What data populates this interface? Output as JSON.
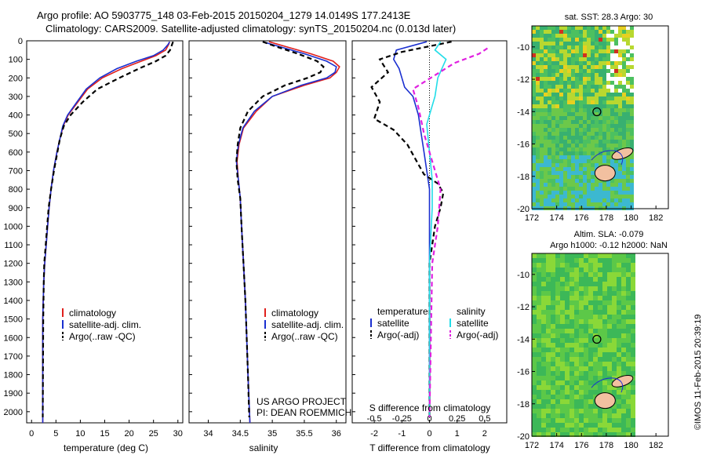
{
  "title": {
    "line1": "Argo profile: AO 5903775_148 03-Feb-2015 20150204_1279 14.0149S 177.2413E",
    "line2": "Climatology: CARS2009. Satellite-adjusted climatology: synTS_20150204.nc (0.013d later)"
  },
  "colors": {
    "climatology": "#e0201c",
    "satellite": "#1a2fd0",
    "argo": "#000000",
    "sat_salinity": "#22dde8",
    "argo_adj_salinity": "#e020e0"
  },
  "chart_data": [
    {
      "id": "temperature",
      "type": "line",
      "xlabel": "temperature (deg C)",
      "ylabel": "",
      "xlim": [
        -1,
        31
      ],
      "ylim": [
        2060,
        0
      ],
      "xticks": [
        0,
        5,
        10,
        15,
        20,
        25,
        30
      ],
      "yticks": [
        0,
        100,
        200,
        300,
        400,
        500,
        600,
        700,
        800,
        900,
        1000,
        1100,
        1200,
        1300,
        1400,
        1500,
        1600,
        1700,
        1800,
        1900,
        2000
      ],
      "legend": {
        "placement": "lower-center",
        "entries": [
          "climatology",
          "satellite-adj. clim.",
          "Argo(..raw -QC)"
        ]
      },
      "series": [
        {
          "name": "climatology",
          "style": "solid",
          "color": "#e0201c",
          "x": [
            28.3,
            28.1,
            27.5,
            25.5,
            22.5,
            18.5,
            14.5,
            11.5,
            9.5,
            7.5,
            6.5,
            5.8,
            5.2,
            4.5,
            4.0,
            3.6,
            3.3,
            3.0,
            2.7,
            2.5,
            2.4,
            2.3,
            2.3
          ],
          "y": [
            5,
            20,
            50,
            80,
            110,
            150,
            200,
            260,
            330,
            400,
            460,
            530,
            600,
            700,
            800,
            900,
            1000,
            1100,
            1200,
            1300,
            1400,
            1500,
            2060
          ]
        },
        {
          "name": "satellite-adj. clim.",
          "style": "solid",
          "color": "#1a2fd0",
          "x": [
            28.3,
            28.0,
            27.0,
            25.0,
            21.5,
            17.5,
            14.0,
            11.2,
            9.3,
            7.4,
            6.4,
            5.8,
            5.2,
            4.5,
            4.0,
            3.6,
            3.3,
            3.0,
            2.7,
            2.5,
            2.4,
            2.3,
            2.3
          ],
          "y": [
            5,
            20,
            50,
            80,
            110,
            150,
            200,
            260,
            330,
            400,
            460,
            530,
            600,
            700,
            800,
            900,
            1000,
            1100,
            1200,
            1300,
            1400,
            1500,
            2060
          ]
        },
        {
          "name": "Argo(..raw -QC)",
          "style": "dashed",
          "color": "#000000",
          "x": [
            29.0,
            28.8,
            28.4,
            27.5,
            25.5,
            22.0,
            18.0,
            13.5,
            10.5,
            8.0,
            6.6,
            5.8,
            5.3,
            4.6,
            4.0,
            3.5,
            3.2,
            2.9,
            2.6,
            2.5,
            2.4,
            2.3
          ],
          "y": [
            5,
            20,
            50,
            80,
            110,
            150,
            200,
            260,
            330,
            400,
            460,
            530,
            600,
            700,
            800,
            900,
            1000,
            1100,
            1200,
            1300,
            1500,
            2030
          ]
        }
      ]
    },
    {
      "id": "salinity",
      "type": "line",
      "xlabel": "salinity",
      "ylabel": "",
      "xlim": [
        33.7,
        36.15
      ],
      "ylim": [
        2060,
        0
      ],
      "xticks": [
        34,
        34.5,
        35,
        35.5,
        36
      ],
      "xticklabels": [
        "34",
        "34.5",
        "35",
        "35.5",
        "36"
      ],
      "legend": {
        "placement": "lower-center",
        "entries": [
          "climatology",
          "satellite-adj. clim.",
          "Argo(..raw -QC)"
        ]
      },
      "annotation": [
        "US ARGO PROJECT",
        "PI: DEAN ROEMMICH"
      ],
      "series": [
        {
          "name": "climatology",
          "style": "solid",
          "color": "#e0201c",
          "x": [
            34.95,
            35.2,
            35.6,
            35.95,
            36.05,
            36.0,
            35.9,
            35.5,
            35.0,
            34.75,
            34.55,
            34.48,
            34.45,
            34.47,
            34.5,
            34.52,
            34.55,
            34.58,
            34.6,
            34.62,
            34.65
          ],
          "y": [
            5,
            30,
            70,
            110,
            140,
            170,
            200,
            240,
            300,
            380,
            470,
            560,
            650,
            750,
            850,
            1000,
            1200,
            1400,
            1600,
            1800,
            2060
          ]
        },
        {
          "name": "satellite-adj. clim.",
          "style": "solid",
          "color": "#1a2fd0",
          "x": [
            34.85,
            35.1,
            35.5,
            35.85,
            36.0,
            35.98,
            35.85,
            35.45,
            35.0,
            34.72,
            34.54,
            34.47,
            34.44,
            34.47,
            34.5,
            34.52,
            34.55,
            34.58,
            34.6,
            34.62,
            34.65
          ],
          "y": [
            5,
            30,
            70,
            110,
            140,
            170,
            200,
            240,
            300,
            380,
            470,
            560,
            650,
            750,
            850,
            1000,
            1200,
            1400,
            1600,
            1800,
            2060
          ]
        },
        {
          "name": "Argo(..raw -QC)",
          "style": "dashed",
          "color": "#000000",
          "x": [
            34.85,
            35.05,
            35.4,
            35.7,
            35.8,
            35.75,
            35.55,
            35.2,
            34.85,
            34.62,
            34.5,
            34.46,
            34.44,
            34.46,
            34.5,
            34.52,
            34.55,
            34.58,
            34.6,
            34.62,
            34.64
          ],
          "y": [
            5,
            30,
            70,
            110,
            140,
            170,
            200,
            240,
            300,
            380,
            470,
            560,
            650,
            750,
            850,
            1000,
            1200,
            1400,
            1600,
            1800,
            2030
          ]
        }
      ]
    },
    {
      "id": "difference",
      "type": "line",
      "xlabel": "T difference from climatology",
      "top_label": "S difference from climatology",
      "xlim": [
        -2.8,
        2.8
      ],
      "ylim": [
        2060,
        0
      ],
      "xticks": [
        -2,
        -1,
        0,
        1,
        2
      ],
      "xticklabels": [
        "-2",
        "-1",
        "0",
        "1",
        "2"
      ],
      "s_ticklabels": [
        "-0.5",
        "-0.25",
        "0",
        "0.25",
        "0.5"
      ],
      "legend": {
        "placement": "lower-center",
        "group_titles": [
          "temperature",
          "salinity"
        ],
        "entries": [
          "satellite",
          "Argo(-adj)",
          "satellite",
          "Argo(-adj)"
        ]
      },
      "series": [
        {
          "name": "temperature satellite",
          "style": "solid",
          "color": "#1a2fd0",
          "x": [
            -0.1,
            -1.2,
            -1.3,
            -1.1,
            -1.0,
            -0.9,
            -0.6,
            -0.4,
            -0.3,
            -0.2,
            -0.1,
            0.0,
            0.0,
            0.0
          ],
          "y": [
            5,
            50,
            100,
            150,
            200,
            250,
            300,
            400,
            500,
            600,
            700,
            800,
            1200,
            2030
          ]
        },
        {
          "name": "temperature Argo(-adj)",
          "style": "dashed",
          "color": "#000000",
          "x": [
            0.8,
            -1.0,
            -1.8,
            -1.5,
            -2.1,
            -1.8,
            -2.0,
            -1.3,
            -0.8,
            -0.5,
            -0.2,
            0.3,
            0.5,
            0.4,
            0.2,
            0.1,
            0.0,
            0.0
          ],
          "y": [
            5,
            60,
            100,
            170,
            250,
            330,
            420,
            480,
            560,
            640,
            720,
            770,
            820,
            900,
            1000,
            1100,
            1200,
            2030
          ]
        },
        {
          "name": "salinity satellite",
          "style": "solid",
          "color": "#22dde8",
          "x": [
            0.4,
            0.2,
            0.6,
            0.3,
            0.2,
            -0.1,
            0.0,
            0.1,
            0.1,
            0.0,
            0.0
          ],
          "y": [
            5,
            50,
            100,
            200,
            300,
            450,
            600,
            750,
            900,
            1200,
            2030
          ]
        },
        {
          "name": "salinity Argo(-adj)",
          "style": "dashed",
          "color": "#e020e0",
          "x": [
            2.1,
            1.8,
            0.9,
            -0.6,
            -0.4,
            -0.2,
            0.1,
            0.4,
            0.3,
            0.1,
            0.0
          ],
          "y": [
            40,
            70,
            120,
            260,
            360,
            500,
            650,
            800,
            1000,
            1200,
            2030
          ]
        }
      ]
    },
    {
      "id": "sst_map",
      "type": "heatmap",
      "title": "sat. SST: 28.3 Argo: 30",
      "xticks": [
        172,
        174,
        176,
        178,
        180,
        182
      ],
      "yticks": [
        -10,
        -12,
        -14,
        -16,
        -18,
        -20
      ],
      "xlim": [
        172,
        183
      ],
      "ylim": [
        -20,
        -8.7
      ],
      "argo_position": [
        177.24,
        -14.01
      ]
    },
    {
      "id": "sla_map",
      "type": "heatmap",
      "title_line1": "Altim. SLA: -0.079",
      "title_line2": "Argo h1000: -0.12 h2000: NaN",
      "xticks": [
        172,
        174,
        176,
        178,
        180,
        182
      ],
      "yticks": [
        -10,
        -12,
        -14,
        -16,
        -18,
        -20
      ],
      "xlim": [
        172,
        183
      ],
      "ylim": [
        -20,
        -8.7
      ],
      "argo_position": [
        177.24,
        -14.01
      ]
    }
  ],
  "footer_stamp": "©IMOS 11-Feb-2015 20:39:19"
}
